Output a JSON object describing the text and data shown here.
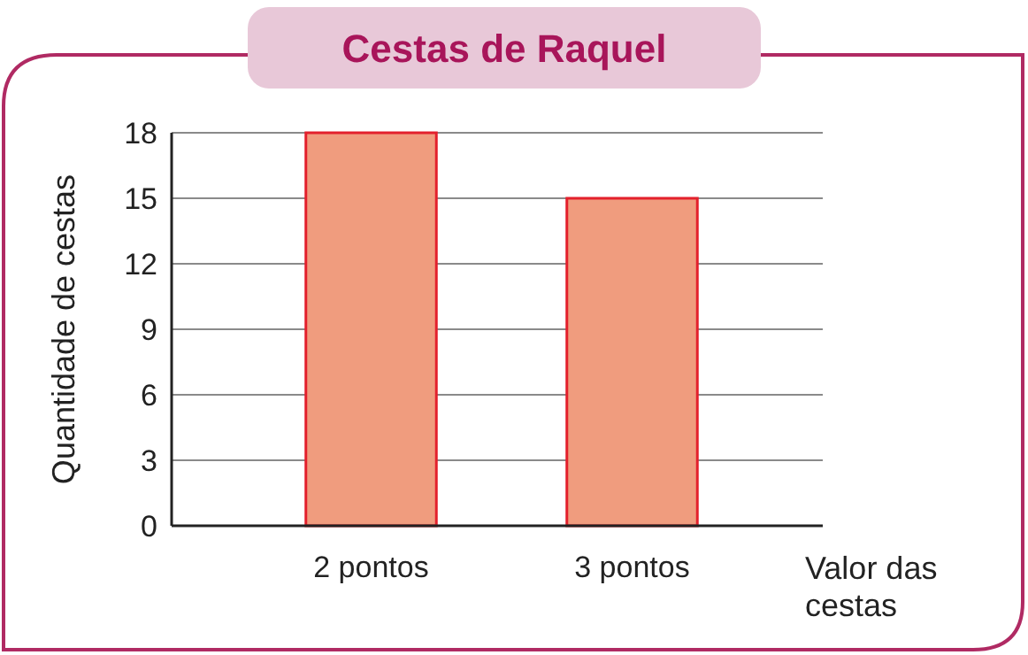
{
  "chart_data": {
    "type": "bar",
    "title": "Cestas de Raquel",
    "xlabel": "Valor das cestas",
    "ylabel": "Quantidade de cestas",
    "categories": [
      "2 pontos",
      "3 pontos"
    ],
    "values": [
      18,
      15
    ],
    "color": "#f09c7e",
    "ylim": [
      0,
      18
    ],
    "yticks": [
      0,
      3,
      6,
      9,
      12,
      15,
      18
    ],
    "grid": "y"
  }
}
